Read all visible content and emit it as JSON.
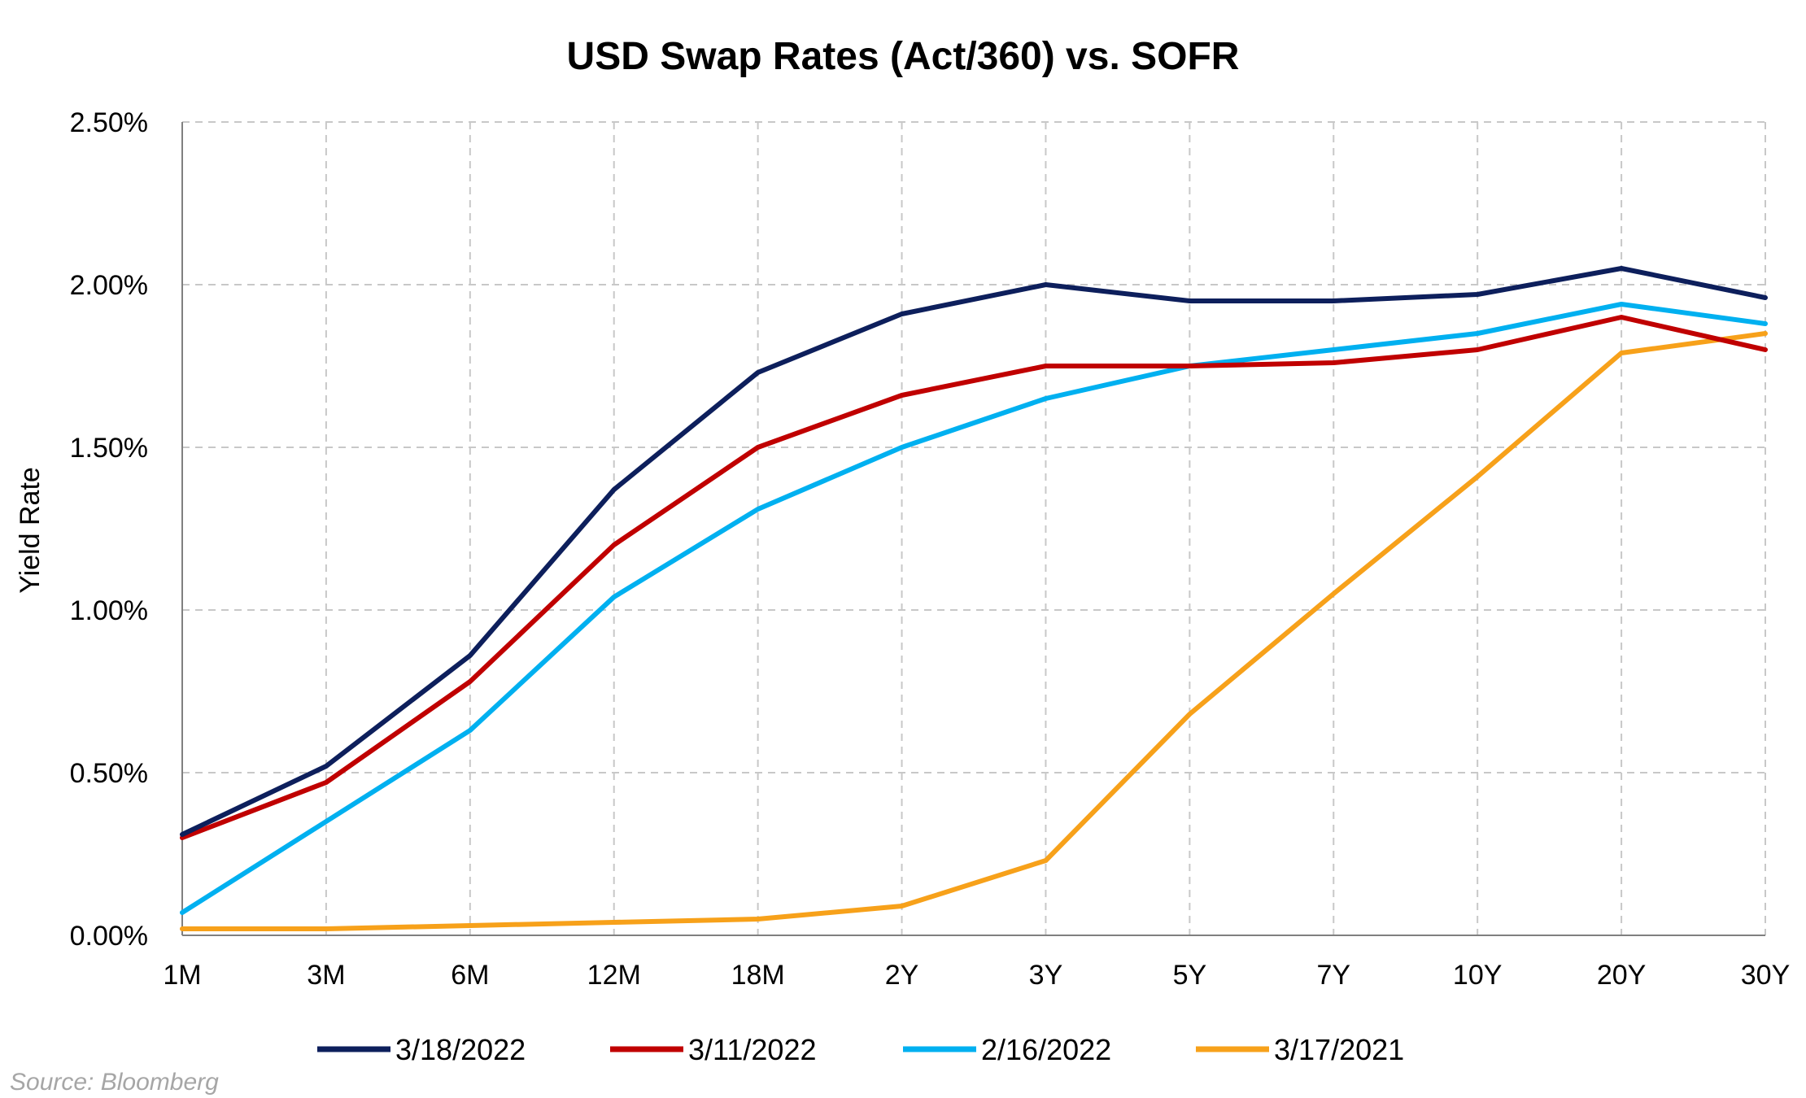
{
  "chart_data": {
    "type": "line",
    "title": "USD Swap Rates (Act/360) vs. SOFR",
    "xlabel": "",
    "ylabel": "Yield Rate",
    "categories": [
      "1M",
      "3M",
      "6M",
      "12M",
      "18M",
      "2Y",
      "3Y",
      "5Y",
      "7Y",
      "10Y",
      "20Y",
      "30Y"
    ],
    "yticks": [
      "0.00%",
      "0.50%",
      "1.00%",
      "1.50%",
      "2.00%",
      "2.50%"
    ],
    "ylim": [
      0,
      2.5
    ],
    "grid": true,
    "legend_position": "bottom",
    "series": [
      {
        "name": "3/18/2022",
        "color": "#0d1f5c",
        "values": [
          0.31,
          0.52,
          0.86,
          1.37,
          1.73,
          1.91,
          2.0,
          1.95,
          1.95,
          1.97,
          2.05,
          1.96
        ]
      },
      {
        "name": "3/11/2022",
        "color": "#c00000",
        "values": [
          0.3,
          0.47,
          0.78,
          1.2,
          1.5,
          1.66,
          1.75,
          1.75,
          1.76,
          1.8,
          1.9,
          1.8
        ]
      },
      {
        "name": "2/16/2022",
        "color": "#00b0f0",
        "values": [
          0.07,
          0.35,
          0.63,
          1.04,
          1.31,
          1.5,
          1.65,
          1.75,
          1.8,
          1.85,
          1.94,
          1.88
        ]
      },
      {
        "name": "3/17/2021",
        "color": "#f7a11a",
        "values": [
          0.02,
          0.02,
          0.03,
          0.04,
          0.05,
          0.09,
          0.23,
          0.68,
          1.05,
          1.41,
          1.79,
          1.85
        ]
      }
    ],
    "source": "Source: Bloomberg"
  }
}
